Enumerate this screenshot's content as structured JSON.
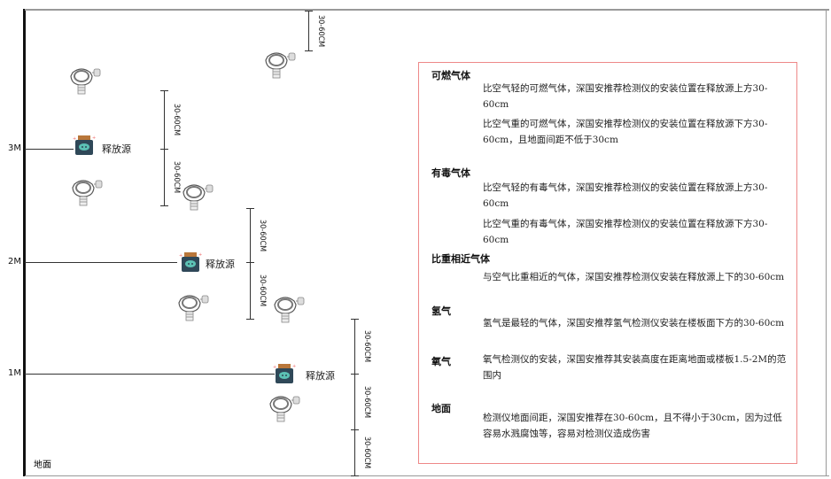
{
  "levels": {
    "l3": "3M",
    "l2": "2M",
    "l1": "1M",
    "ground": "地面"
  },
  "source_label": "释放源",
  "dim_label": "30-60CM",
  "colors": {
    "frame_border": "#e88888",
    "source_body": "#2f4858",
    "source_cap": "#b9773a",
    "source_face": "#5cc2b5"
  },
  "notes": {
    "combustible": {
      "title": "可燃气体",
      "p1": "比空气轻的可燃气体，深国安推荐检测仪的安装位置在释放源上方30-60cm",
      "p2": "比空气重的可燃气体，深国安推荐检测仪的安装位置在释放源下方30-60cm，且地面间距不低于30cm"
    },
    "toxic": {
      "title": "有毒气体",
      "p1": "比空气轻的有毒气体，深国安推荐检测仪的安装位置在释放源上方30-60cm",
      "p2": "比空气重的有毒气体，深国安推荐检测仪的安装位置在释放源下方30-60cm"
    },
    "similar": {
      "title": "比重相近气体",
      "p1": "与空气比重相近的气体，深国安推荐检测仪安装在释放源上下的30-60cm"
    },
    "hydrogen": {
      "title": "氢气",
      "p1": "氢气是最轻的气体，深国安推荐氢气检测仪安装在楼板面下方的30-60cm"
    },
    "oxygen": {
      "title": "氧气",
      "p1": "氧气检测仪的安装，深国安推荐其安装高度在距离地面或楼板1.5-2M的范围内"
    },
    "floor": {
      "title": "地面",
      "p1": "检测仪地面间距，深国安推荐在30-60cm，且不得小于30cm，因为过低容易水溅腐蚀等，容易对检测仪造成伤害"
    }
  }
}
